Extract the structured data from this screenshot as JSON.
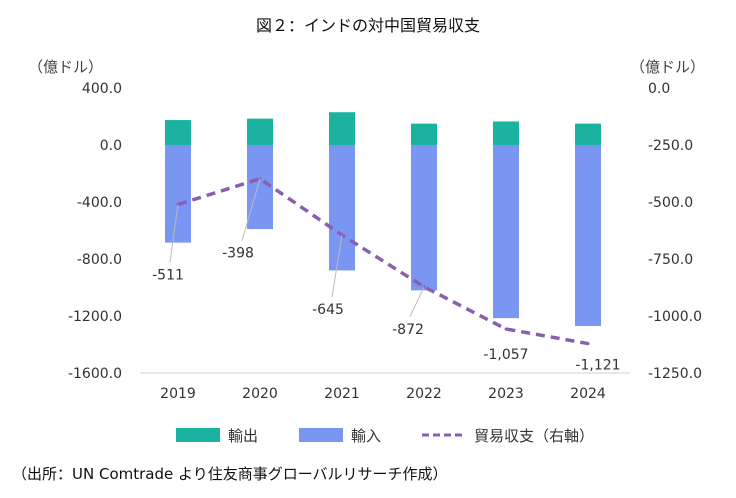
{
  "chart_data": {
    "type": "bar",
    "title": "図２：インドの対中国貿易収支",
    "ylabel_left": "（億ドル）",
    "ylabel_right": "（億ドル）",
    "categories": [
      "2019",
      "2020",
      "2021",
      "2022",
      "2023",
      "2024"
    ],
    "ylim_left": [
      -1600,
      400
    ],
    "ylim_right": [
      -1250,
      0
    ],
    "yticks_left": [
      "400.0",
      "0.0",
      "-400.0",
      "-800.0",
      "-1200.0",
      "-1600.0"
    ],
    "yticks_right": [
      "0.0",
      "-250.0",
      "-500.0",
      "-750.0",
      "-1000.0",
      "-1250.0"
    ],
    "series": [
      {
        "name": "輸出",
        "type": "bar",
        "axis": "left",
        "color": "#1bb3a0",
        "values": [
          175,
          185,
          230,
          150,
          165,
          150
        ]
      },
      {
        "name": "輸入",
        "type": "bar",
        "axis": "left",
        "color": "#7b96f2",
        "values": [
          -685,
          -590,
          -880,
          -1020,
          -1215,
          -1270
        ]
      },
      {
        "name": "貿易収支（右軸）",
        "type": "line",
        "axis": "right",
        "color": "#8a5fb0",
        "values": [
          -511,
          -398,
          -645,
          -872,
          -1057,
          -1121
        ],
        "labels": [
          "-511",
          "-398",
          "-645",
          "-872",
          "-1,057",
          "-1,121"
        ]
      }
    ],
    "grid": false,
    "legend": "bottom"
  },
  "source": "（出所：UN Comtrade より住友商事グローバルリサーチ作成）"
}
